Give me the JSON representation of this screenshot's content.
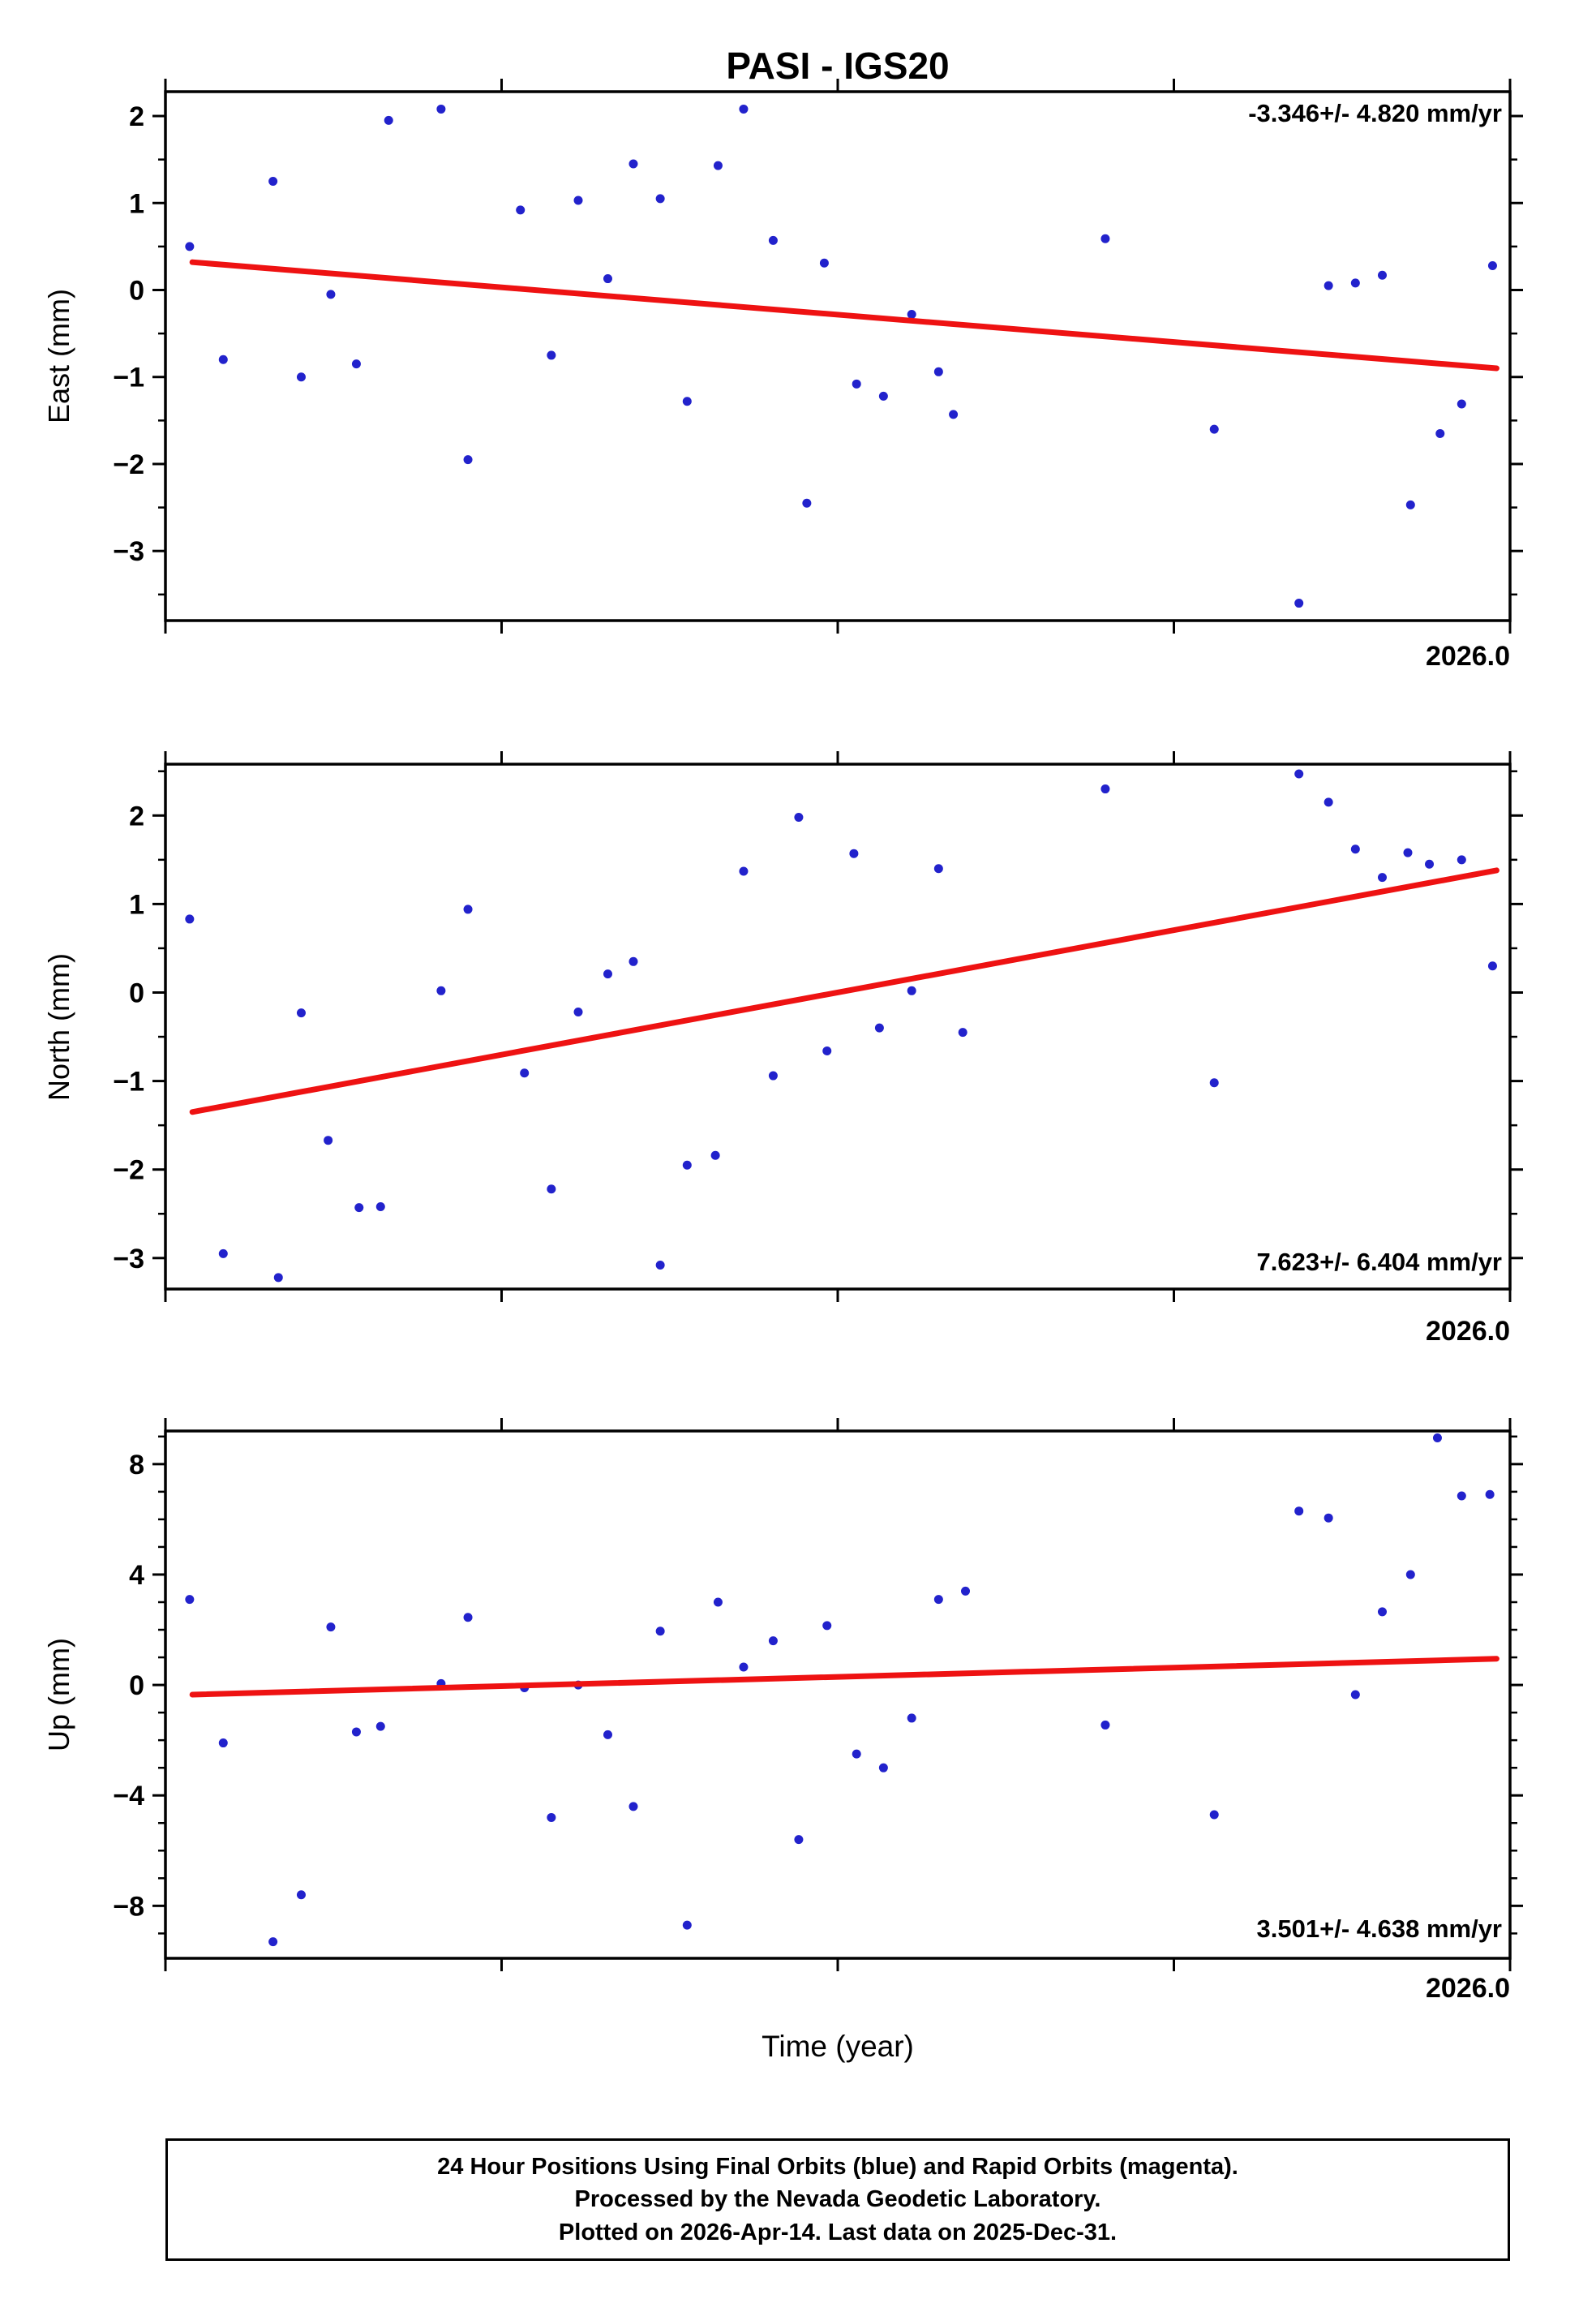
{
  "title": "PASI - IGS20",
  "xlabel": "Time (year)",
  "colors": {
    "point": "#2222cc",
    "trend": "#ee1212",
    "axis": "#000000"
  },
  "footer": {
    "line1": "24 Hour Positions Using Final Orbits (blue) and Rapid Orbits (magenta).",
    "line2": "Processed by the Nevada Geodetic Laboratory.",
    "line3": "Plotted on 2026-Apr-14. Last data on 2025-Dec-31."
  },
  "chart_data": [
    {
      "type": "scatter",
      "ylabel": "East (mm)",
      "annotation": "-3.346+/- 4.820 mm/yr",
      "annotation_position": "top-right",
      "x_right_label": "2026.0",
      "xlim": [
        2025.0,
        2026.0
      ],
      "ylim": [
        -3.8,
        2.28
      ],
      "xticks": [
        2025.0,
        2025.25,
        2025.5,
        2025.75,
        2026.0
      ],
      "yticks": [
        2,
        1,
        0,
        -1,
        -2,
        -3
      ],
      "ytick_minor": 0.5,
      "trend": {
        "x": [
          2025.02,
          2025.99
        ],
        "y": [
          0.32,
          -0.9
        ]
      },
      "points": {
        "x": [
          2025.018,
          2025.043,
          2025.08,
          2025.101,
          2025.123,
          2025.142,
          2025.166,
          2025.205,
          2025.225,
          2025.264,
          2025.287,
          2025.307,
          2025.329,
          2025.348,
          2025.368,
          2025.388,
          2025.411,
          2025.43,
          2025.452,
          2025.477,
          2025.49,
          2025.514,
          2025.534,
          2025.555,
          2025.575,
          2025.586,
          2025.699,
          2025.78,
          2025.843,
          2025.865,
          2025.885,
          2025.905,
          2025.926,
          2025.948,
          2025.964,
          2025.987
        ],
        "y": [
          0.5,
          -0.8,
          1.25,
          -1.0,
          -0.05,
          -0.85,
          1.95,
          2.08,
          -1.95,
          0.92,
          -0.75,
          1.03,
          0.13,
          1.45,
          1.05,
          -1.28,
          1.43,
          2.08,
          0.57,
          -2.45,
          0.31,
          -1.08,
          -1.22,
          -0.28,
          -0.94,
          -1.43,
          0.59,
          -1.6,
          -3.6,
          0.05,
          0.08,
          0.17,
          -2.47,
          -1.65,
          -1.31,
          0.28
        ]
      }
    },
    {
      "type": "scatter",
      "ylabel": "North (mm)",
      "annotation": "7.623+/- 6.404 mm/yr",
      "annotation_position": "bottom-right",
      "x_right_label": "2026.0",
      "xlim": [
        2025.0,
        2026.0
      ],
      "ylim": [
        -3.35,
        2.58
      ],
      "xticks": [
        2025.0,
        2025.25,
        2025.5,
        2025.75,
        2026.0
      ],
      "yticks": [
        2,
        1,
        0,
        -1,
        -2,
        -3
      ],
      "ytick_minor": 0.5,
      "trend": {
        "x": [
          2025.02,
          2025.99
        ],
        "y": [
          -1.35,
          1.38
        ]
      },
      "points": {
        "x": [
          2025.018,
          2025.043,
          2025.084,
          2025.101,
          2025.121,
          2025.144,
          2025.16,
          2025.205,
          2025.225,
          2025.267,
          2025.287,
          2025.307,
          2025.329,
          2025.348,
          2025.368,
          2025.388,
          2025.409,
          2025.43,
          2025.452,
          2025.471,
          2025.492,
          2025.512,
          2025.531,
          2025.555,
          2025.575,
          2025.593,
          2025.699,
          2025.78,
          2025.843,
          2025.865,
          2025.885,
          2025.905,
          2025.924,
          2025.94,
          2025.964,
          2025.987
        ],
        "y": [
          0.83,
          -2.95,
          -3.22,
          -0.23,
          -1.67,
          -2.43,
          -2.42,
          0.02,
          0.94,
          -0.91,
          -2.22,
          -0.22,
          0.21,
          0.35,
          -3.08,
          -1.95,
          -1.84,
          1.37,
          -0.94,
          1.98,
          -0.66,
          1.57,
          -0.4,
          0.02,
          1.4,
          -0.45,
          2.3,
          -1.02,
          2.47,
          2.15,
          1.62,
          1.3,
          1.58,
          1.45,
          1.5,
          0.3
        ]
      }
    },
    {
      "type": "scatter",
      "ylabel": "Up (mm)",
      "annotation": "3.501+/- 4.638 mm/yr",
      "annotation_position": "bottom-right",
      "x_right_label": "2026.0",
      "xlim": [
        2025.0,
        2026.0
      ],
      "ylim": [
        -9.9,
        9.2
      ],
      "xticks": [
        2025.0,
        2025.25,
        2025.5,
        2025.75,
        2026.0
      ],
      "yticks": [
        8,
        4,
        0,
        -4,
        -8
      ],
      "ytick_minor": 1,
      "trend": {
        "x": [
          2025.02,
          2025.99
        ],
        "y": [
          -0.35,
          0.95
        ]
      },
      "points": {
        "x": [
          2025.018,
          2025.043,
          2025.08,
          2025.101,
          2025.123,
          2025.142,
          2025.16,
          2025.205,
          2025.225,
          2025.267,
          2025.287,
          2025.307,
          2025.329,
          2025.348,
          2025.368,
          2025.388,
          2025.411,
          2025.43,
          2025.452,
          2025.471,
          2025.492,
          2025.514,
          2025.534,
          2025.555,
          2025.575,
          2025.595,
          2025.699,
          2025.78,
          2025.843,
          2025.865,
          2025.885,
          2025.905,
          2025.926,
          2025.946,
          2025.964,
          2025.985
        ],
        "y": [
          3.1,
          -2.1,
          -9.3,
          -7.6,
          2.1,
          -1.7,
          -1.5,
          0.05,
          2.45,
          -0.1,
          -4.8,
          0.0,
          -1.8,
          -4.4,
          1.95,
          -8.7,
          3.0,
          0.65,
          1.6,
          -5.6,
          2.15,
          -2.5,
          -3.0,
          -1.2,
          3.1,
          3.4,
          -1.45,
          -4.7,
          6.3,
          6.05,
          -0.35,
          2.65,
          4.0,
          8.95,
          6.85,
          6.9
        ]
      }
    }
  ]
}
